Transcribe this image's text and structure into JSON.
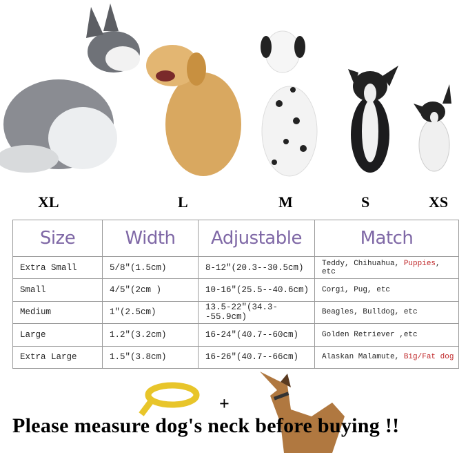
{
  "size_labels": [
    "XL",
    "L",
    "M",
    "S",
    "XS"
  ],
  "table": {
    "headers": [
      "Size",
      "Width",
      "Adjustable",
      "Match"
    ],
    "rows": [
      {
        "size": "Extra Small",
        "width": "5/8″(1.5cm)",
        "adjustable": "8-12″(20.3--30.5cm)",
        "match": "Teddy, Chihuahua, ",
        "match_highlight": "Puppies",
        "match_suffix": ", etc"
      },
      {
        "size": "Small",
        "width": "4/5″(2cm )",
        "adjustable": "10-16″(25.5--40.6cm)",
        "match": "Corgi, Pug, etc",
        "match_highlight": "",
        "match_suffix": ""
      },
      {
        "size": "Medium",
        "width": "1″(2.5cm)",
        "adjustable": "13.5-22″(34.3--55.9cm)",
        "match": "Beagles, Bulldog, etc",
        "match_highlight": "",
        "match_suffix": ""
      },
      {
        "size": "Large",
        "width": "1.2″(3.2cm)",
        "adjustable": "16-24″(40.7--60cm)",
        "match": "Golden Retriever ,etc",
        "match_highlight": "",
        "match_suffix": ""
      },
      {
        "size": "Extra Large",
        "width": "1.5″(3.8cm)",
        "adjustable": "16-26″(40.7--66cm)",
        "match": "Alaskan Malamute, ",
        "match_highlight": "Big/Fat dog",
        "match_suffix": ""
      }
    ]
  },
  "plus": "+",
  "headline": "Please measure dog's neck before buying !!",
  "colors": {
    "header_text": "#7f68a6",
    "highlight": "#c0282a",
    "tape": "#e8c52a",
    "dog_silhouette": "#b07840"
  }
}
